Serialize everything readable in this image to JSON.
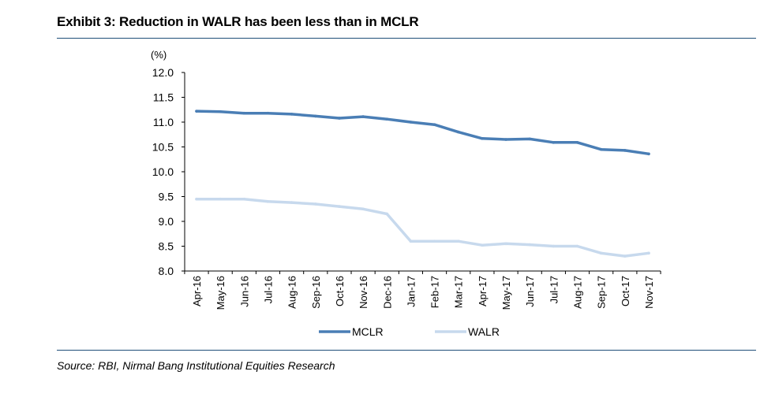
{
  "header": {
    "title": "Exhibit 3:  Reduction in WALR has been less than in MCLR"
  },
  "footer": {
    "source": "Source: RBI, Nirmal Bang Institutional Equities Research"
  },
  "chart_data": {
    "type": "line",
    "title": "Exhibit 3:  Reduction in WALR has been less than in MCLR",
    "ylabel": "(%)",
    "xlabel": "",
    "ylim": [
      8.0,
      12.0
    ],
    "ytick_step": 0.5,
    "yticks": [
      "12.0",
      "11.5",
      "11.0",
      "10.5",
      "10.0",
      "9.5",
      "9.0",
      "8.5",
      "8.0"
    ],
    "categories": [
      "Apr-16",
      "May-16",
      "Jun-16",
      "Jul-16",
      "Aug-16",
      "Sep-16",
      "Oct-16",
      "Nov-16",
      "Dec-16",
      "Jan-17",
      "Feb-17",
      "Mar-17",
      "Apr-17",
      "May-17",
      "Jun-17",
      "Jul-17",
      "Aug-17",
      "Sep-17",
      "Oct-17",
      "Nov-17"
    ],
    "series": [
      {
        "name": "MCLR",
        "color": "#4a7eb5",
        "values": [
          11.22,
          11.21,
          11.18,
          11.18,
          11.16,
          11.12,
          11.08,
          11.11,
          11.06,
          11.0,
          10.95,
          10.8,
          10.67,
          10.65,
          10.66,
          10.59,
          10.59,
          10.45,
          10.43,
          10.36
        ]
      },
      {
        "name": "WALR",
        "color": "#c7d9ed",
        "values": [
          9.45,
          9.45,
          9.45,
          9.4,
          9.38,
          9.35,
          9.3,
          9.25,
          9.15,
          8.6,
          8.6,
          8.6,
          8.52,
          8.55,
          8.53,
          8.5,
          8.5,
          8.36,
          8.3,
          8.36
        ]
      }
    ],
    "grid": false,
    "legend": "bottom"
  }
}
